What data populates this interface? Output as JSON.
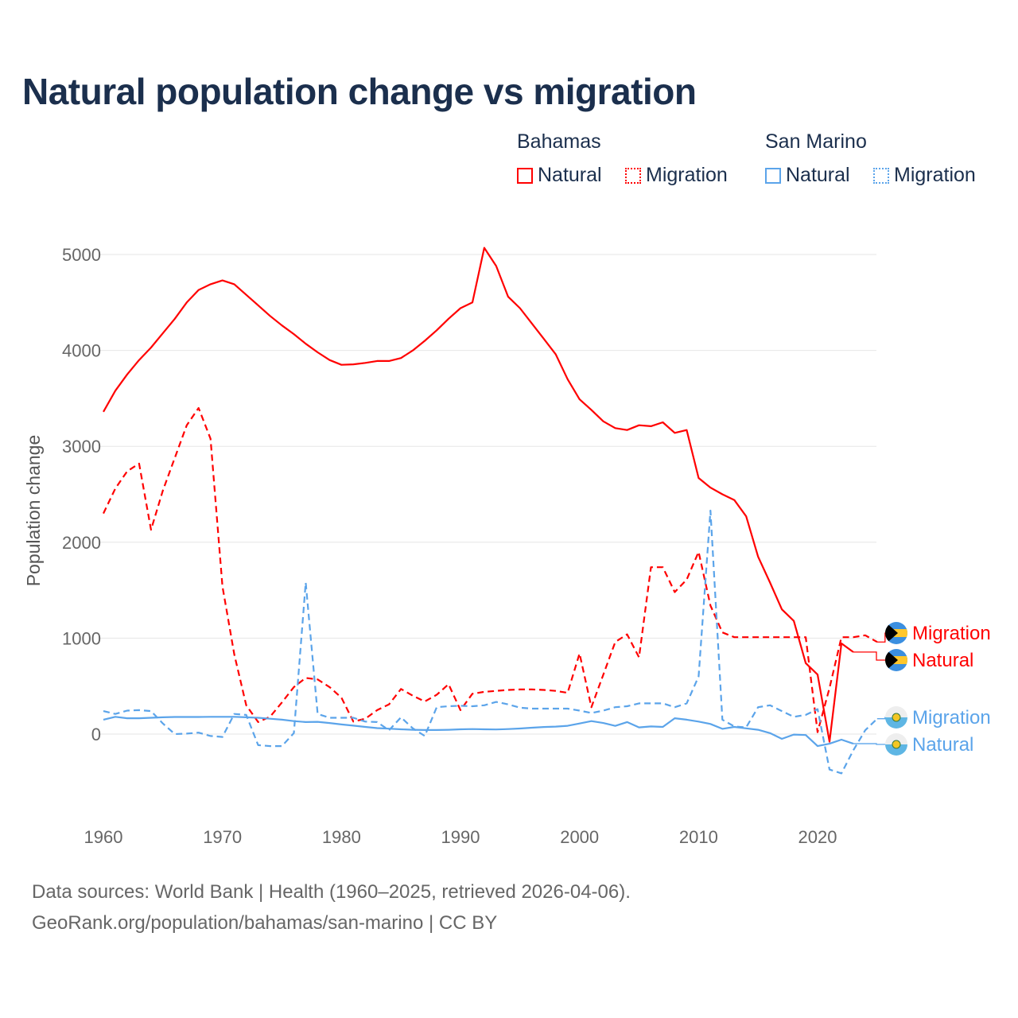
{
  "title": "Natural population change vs migration",
  "legend": {
    "groups": [
      {
        "name": "Bahamas",
        "items": [
          {
            "label": "Natural",
            "style": "solid",
            "color": "#ff0000"
          },
          {
            "label": "Migration",
            "style": "dotted",
            "color": "#ff0000"
          }
        ]
      },
      {
        "name": "San Marino",
        "items": [
          {
            "label": "Natural",
            "style": "solid",
            "color": "#5ba4ea"
          },
          {
            "label": "Migration",
            "style": "dotted",
            "color": "#5ba4ea"
          }
        ]
      }
    ]
  },
  "footer": {
    "line1": "Data sources: World Bank | Health (1960–2025, retrieved 2026-04-06).",
    "line2": "GeoRank.org/population/bahamas/san-marino | CC BY"
  },
  "chart_data": {
    "type": "line",
    "title": "Natural population change vs migration",
    "xlabel": "",
    "ylabel": "Population change",
    "xlim": [
      1960,
      2025
    ],
    "ylim": [
      -600,
      5200
    ],
    "yticks": [
      "0",
      "1000",
      "2000",
      "3000",
      "4000",
      "5000"
    ],
    "ytick_values": [
      0,
      1000,
      2000,
      3000,
      4000,
      5000
    ],
    "xticks": [
      "1960",
      "1970",
      "1980",
      "1990",
      "2000",
      "2010",
      "2020"
    ],
    "xtick_values": [
      1960,
      1970,
      1980,
      1990,
      2000,
      2010,
      2020
    ],
    "grid": true,
    "series": [
      {
        "name": "Bahamas Natural",
        "country": "Bahamas",
        "end_label": "Natural",
        "flag": "bahamas-flag",
        "color": "#ff0000",
        "dashed": false,
        "start_year": 1960,
        "values": [
          3360,
          3580,
          3750,
          3900,
          4030,
          4180,
          4330,
          4500,
          4630,
          4690,
          4730,
          4690,
          4580,
          4470,
          4360,
          4260,
          4170,
          4070,
          3980,
          3900,
          3850,
          3855,
          3870,
          3890,
          3890,
          3920,
          4000,
          4100,
          4210,
          4330,
          4440,
          4500,
          5070,
          4880,
          4560,
          4440,
          4280,
          4120,
          3960,
          3700,
          3490,
          3380,
          3260,
          3190,
          3170,
          3220,
          3210,
          3250,
          3140,
          3170,
          2670,
          2570,
          2500,
          2440,
          2270,
          1850,
          1580,
          1300,
          1180,
          740,
          620,
          -80,
          945,
          855
        ]
      },
      {
        "name": "Bahamas Migration",
        "country": "Bahamas",
        "end_label": "Migration",
        "flag": "bahamas-flag",
        "color": "#ff0000",
        "dashed": true,
        "start_year": 1960,
        "values": [
          2300,
          2560,
          2740,
          2820,
          2130,
          2540,
          2880,
          3220,
          3400,
          3080,
          1540,
          830,
          300,
          125,
          180,
          330,
          490,
          585,
          570,
          490,
          380,
          130,
          160,
          250,
          310,
          470,
          400,
          340,
          410,
          520,
          250,
          420,
          440,
          450,
          460,
          465,
          465,
          460,
          450,
          430,
          840,
          280,
          620,
          960,
          1040,
          800,
          1740,
          1740,
          1480,
          1610,
          1900,
          1340,
          1060,
          1010,
          1010,
          1010,
          1010,
          1010,
          1010,
          1010,
          20,
          480,
          1010,
          1010,
          1030,
          960
        ]
      },
      {
        "name": "San Marino Natural",
        "country": "San Marino",
        "end_label": "Natural",
        "flag": "san-marino-flag",
        "color": "#5ba4ea",
        "dashed": false,
        "start_year": 1960,
        "values": [
          150,
          180,
          165,
          165,
          170,
          175,
          178,
          178,
          178,
          180,
          180,
          180,
          175,
          170,
          160,
          150,
          135,
          125,
          128,
          115,
          100,
          88,
          75,
          62,
          56,
          50,
          45,
          42,
          42,
          45,
          50,
          52,
          50,
          48,
          52,
          58,
          66,
          74,
          78,
          86,
          110,
          135,
          115,
          85,
          125,
          70,
          80,
          75,
          165,
          150,
          130,
          105,
          55,
          75,
          60,
          45,
          10,
          -50,
          -5,
          -10,
          -125,
          -100,
          -58,
          -100
        ]
      },
      {
        "name": "San Marino Migration",
        "country": "San Marino",
        "end_label": "Migration",
        "flag": "san-marino-flag",
        "color": "#5ba4ea",
        "dashed": true,
        "start_year": 1960,
        "values": [
          240,
          210,
          245,
          250,
          240,
          110,
          0,
          5,
          15,
          -20,
          -30,
          210,
          200,
          -115,
          -125,
          -125,
          10,
          1580,
          210,
          170,
          170,
          170,
          130,
          125,
          40,
          175,
          60,
          -20,
          280,
          290,
          295,
          290,
          300,
          335,
          310,
          275,
          265,
          265,
          265,
          265,
          245,
          220,
          245,
          280,
          290,
          320,
          320,
          320,
          280,
          320,
          600,
          2330,
          150,
          80,
          70,
          280,
          300,
          240,
          180,
          200,
          260,
          -370,
          -410,
          -170,
          40,
          160
        ]
      }
    ],
    "end_labels": [
      {
        "series": 1,
        "text": "Migration"
      },
      {
        "series": 0,
        "text": "Natural"
      },
      {
        "series": 3,
        "text": "Migration"
      },
      {
        "series": 2,
        "text": "Natural"
      }
    ]
  }
}
